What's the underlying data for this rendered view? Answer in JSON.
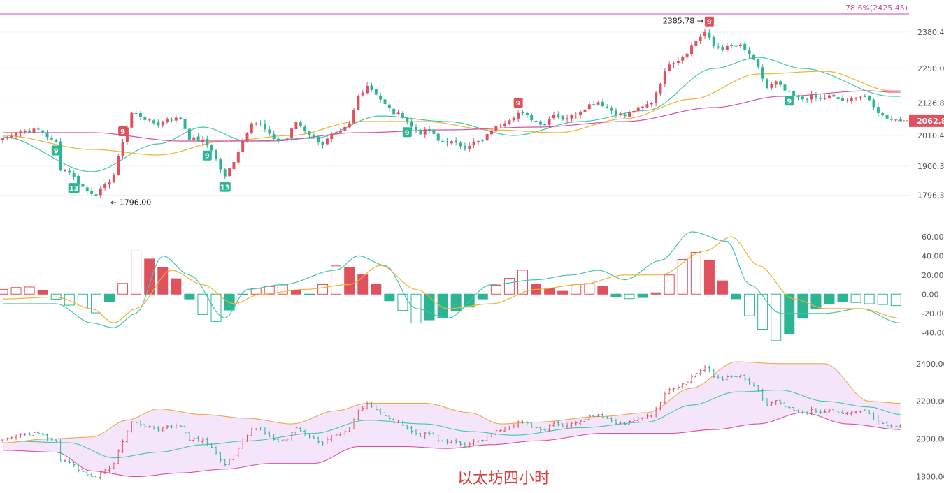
{
  "colors": {
    "up": "#e0515e",
    "down": "#2bb594",
    "fib_line": "#c94ea0",
    "fib_label": "#c94ea0",
    "ma_fast": "#3cc9b0",
    "ma_mid": "#f2b233",
    "ma_slow": "#d94fa6",
    "macd_dif": "#3cc9b0",
    "macd_dea": "#f2b233",
    "boll_upper": "#f2a54a",
    "boll_mid": "#3cc9b0",
    "boll_lower": "#d94fa6",
    "boll_fill": "#f1defa",
    "caption": "#e23b3b",
    "last_price_bg": "#e0515e"
  },
  "chart_data": [
    {
      "panel": "price",
      "type": "candlestick",
      "fib_label": "78.6%(2425.45)",
      "fib_value": 2425.45,
      "last_price": "2062.82",
      "last_price_value": 2062.82,
      "y_ticks": [
        "2380.41",
        "2250.08",
        "2126.80",
        "2010.43",
        "1900.35",
        "1796.30"
      ],
      "y_tick_values": [
        2380.41,
        2250.08,
        2126.8,
        2010.43,
        1900.35,
        1796.3
      ],
      "ylim": [
        1745,
        2440
      ],
      "annotations": [
        {
          "text": "2385.78",
          "value": 2385.78,
          "side": "left-arrow-right"
        },
        {
          "text": "1796.00",
          "value": 1796.0,
          "side": "right-arrow-left"
        }
      ],
      "markers": [
        {
          "text": "9",
          "color": "down",
          "below_candle": 12
        },
        {
          "text": "13",
          "color": "down",
          "below_candle": 16
        },
        {
          "text": "9",
          "color": "up",
          "above_candle": 27
        },
        {
          "text": "9",
          "color": "down",
          "below_candle": 46
        },
        {
          "text": "13",
          "color": "down",
          "below_candle": 50
        },
        {
          "text": "9",
          "color": "down",
          "below_candle": 91
        },
        {
          "text": "9",
          "color": "up",
          "above_candle": 116
        },
        {
          "text": "9",
          "color": "up",
          "above_candle": 159
        },
        {
          "text": "9",
          "color": "down",
          "below_candle": 177
        }
      ],
      "candles_anchor_closes": [
        [
          0,
          2000
        ],
        [
          4,
          2025
        ],
        [
          8,
          2030
        ],
        [
          12,
          1985
        ],
        [
          13,
          1890
        ],
        [
          15,
          1880
        ],
        [
          17,
          1840
        ],
        [
          19,
          1810
        ],
        [
          21,
          1800
        ],
        [
          23,
          1830
        ],
        [
          25,
          1870
        ],
        [
          27,
          1990
        ],
        [
          29,
          2090
        ],
        [
          31,
          2080
        ],
        [
          33,
          2060
        ],
        [
          35,
          2050
        ],
        [
          37,
          2070
        ],
        [
          40,
          2070
        ],
        [
          42,
          2000
        ],
        [
          45,
          1990
        ],
        [
          47,
          1960
        ],
        [
          49,
          1890
        ],
        [
          50,
          1860
        ],
        [
          52,
          1920
        ],
        [
          54,
          1990
        ],
        [
          56,
          2060
        ],
        [
          58,
          2050
        ],
        [
          60,
          2010
        ],
        [
          62,
          1990
        ],
        [
          64,
          2000
        ],
        [
          66,
          2060
        ],
        [
          68,
          2030
        ],
        [
          70,
          2000
        ],
        [
          72,
          1980
        ],
        [
          74,
          2010
        ],
        [
          76,
          2020
        ],
        [
          78,
          2050
        ],
        [
          80,
          2150
        ],
        [
          82,
          2190
        ],
        [
          84,
          2160
        ],
        [
          86,
          2120
        ],
        [
          88,
          2090
        ],
        [
          90,
          2080
        ],
        [
          92,
          2040
        ],
        [
          94,
          2020
        ],
        [
          96,
          2030
        ],
        [
          98,
          1990
        ],
        [
          100,
          1990
        ],
        [
          102,
          1980
        ],
        [
          104,
          1970
        ],
        [
          106,
          1985
        ],
        [
          108,
          1990
        ],
        [
          110,
          2030
        ],
        [
          112,
          2050
        ],
        [
          114,
          2070
        ],
        [
          116,
          2090
        ],
        [
          118,
          2080
        ],
        [
          120,
          2060
        ],
        [
          122,
          2050
        ],
        [
          124,
          2090
        ],
        [
          126,
          2070
        ],
        [
          128,
          2080
        ],
        [
          130,
          2100
        ],
        [
          132,
          2120
        ],
        [
          134,
          2130
        ],
        [
          136,
          2110
        ],
        [
          138,
          2090
        ],
        [
          140,
          2080
        ],
        [
          142,
          2100
        ],
        [
          144,
          2110
        ],
        [
          146,
          2130
        ],
        [
          148,
          2200
        ],
        [
          150,
          2270
        ],
        [
          152,
          2280
        ],
        [
          154,
          2310
        ],
        [
          156,
          2350
        ],
        [
          158,
          2380
        ],
        [
          160,
          2330
        ],
        [
          162,
          2320
        ],
        [
          164,
          2330
        ],
        [
          166,
          2330
        ],
        [
          168,
          2300
        ],
        [
          170,
          2250
        ],
        [
          172,
          2180
        ],
        [
          174,
          2200
        ],
        [
          176,
          2170
        ],
        [
          178,
          2150
        ],
        [
          180,
          2140
        ],
        [
          182,
          2150
        ],
        [
          184,
          2140
        ],
        [
          186,
          2150
        ],
        [
          188,
          2140
        ],
        [
          190,
          2130
        ],
        [
          192,
          2150
        ],
        [
          194,
          2150
        ],
        [
          196,
          2110
        ],
        [
          198,
          2080
        ],
        [
          200,
          2070
        ],
        [
          202,
          2062.82
        ]
      ],
      "candle_count": 203,
      "ma_series": [
        {
          "key": "ma_fast",
          "values_anchor": [
            [
              0,
              2005
            ],
            [
              20,
              1880
            ],
            [
              35,
              1980
            ],
            [
              45,
              2040
            ],
            [
              55,
              1990
            ],
            [
              70,
              2000
            ],
            [
              85,
              2080
            ],
            [
              100,
              2060
            ],
            [
              115,
              2010
            ],
            [
              130,
              2060
            ],
            [
              145,
              2100
            ],
            [
              160,
              2250
            ],
            [
              170,
              2290
            ],
            [
              180,
              2250
            ],
            [
              200,
              2150
            ]
          ]
        },
        {
          "key": "ma_mid",
          "values_anchor": [
            [
              0,
              2010
            ],
            [
              20,
              1960
            ],
            [
              35,
              1940
            ],
            [
              50,
              1990
            ],
            [
              65,
              2010
            ],
            [
              80,
              2060
            ],
            [
              95,
              2060
            ],
            [
              110,
              2030
            ],
            [
              125,
              2020
            ],
            [
              140,
              2070
            ],
            [
              155,
              2140
            ],
            [
              170,
              2230
            ],
            [
              185,
              2240
            ],
            [
              200,
              2170
            ]
          ]
        },
        {
          "key": "ma_slow",
          "values_anchor": [
            [
              0,
              2020
            ],
            [
              20,
              2020
            ],
            [
              40,
              1990
            ],
            [
              60,
              1990
            ],
            [
              80,
              2020
            ],
            [
              100,
              2030
            ],
            [
              120,
              2040
            ],
            [
              140,
              2060
            ],
            [
              160,
              2110
            ],
            [
              175,
              2150
            ],
            [
              195,
              2170
            ],
            [
              200,
              2165
            ]
          ]
        }
      ]
    },
    {
      "panel": "macd",
      "type": "bar",
      "y_ticks": [
        "60.00",
        "40.00",
        "20.00",
        "0.00",
        "-20.00",
        "-40.00"
      ],
      "y_tick_values": [
        60,
        40,
        20,
        0,
        -20,
        -40
      ],
      "ylim": [
        -50,
        70
      ],
      "histogram_anchor": [
        [
          0,
          5
        ],
        [
          5,
          8
        ],
        [
          10,
          3
        ],
        [
          13,
          -8
        ],
        [
          17,
          -15
        ],
        [
          22,
          -20
        ],
        [
          26,
          5
        ],
        [
          30,
          45
        ],
        [
          34,
          35
        ],
        [
          38,
          20
        ],
        [
          42,
          -5
        ],
        [
          47,
          -30
        ],
        [
          52,
          -15
        ],
        [
          55,
          5
        ],
        [
          60,
          8
        ],
        [
          64,
          10
        ],
        [
          68,
          -3
        ],
        [
          72,
          10
        ],
        [
          76,
          33
        ],
        [
          80,
          22
        ],
        [
          84,
          10
        ],
        [
          88,
          -10
        ],
        [
          93,
          -30
        ],
        [
          98,
          -25
        ],
        [
          104,
          -15
        ],
        [
          108,
          -5
        ],
        [
          112,
          12
        ],
        [
          117,
          25
        ],
        [
          121,
          8
        ],
        [
          126,
          3
        ],
        [
          130,
          12
        ],
        [
          134,
          10
        ],
        [
          138,
          -3
        ],
        [
          142,
          -5
        ],
        [
          146,
          -2
        ],
        [
          150,
          20
        ],
        [
          155,
          45
        ],
        [
          159,
          35
        ],
        [
          163,
          10
        ],
        [
          166,
          -10
        ],
        [
          170,
          -35
        ],
        [
          175,
          -50
        ],
        [
          180,
          -25
        ],
        [
          185,
          -10
        ],
        [
          190,
          -8
        ],
        [
          195,
          -10
        ],
        [
          202,
          -12
        ]
      ],
      "dif_anchor": [
        [
          0,
          -10
        ],
        [
          12,
          -10
        ],
        [
          20,
          -30
        ],
        [
          25,
          -35
        ],
        [
          30,
          -20
        ],
        [
          36,
          40
        ],
        [
          42,
          20
        ],
        [
          50,
          -25
        ],
        [
          55,
          5
        ],
        [
          63,
          10
        ],
        [
          75,
          25
        ],
        [
          80,
          40
        ],
        [
          86,
          30
        ],
        [
          93,
          -15
        ],
        [
          100,
          -25
        ],
        [
          110,
          10
        ],
        [
          120,
          15
        ],
        [
          128,
          20
        ],
        [
          134,
          25
        ],
        [
          140,
          15
        ],
        [
          148,
          35
        ],
        [
          155,
          65
        ],
        [
          163,
          55
        ],
        [
          168,
          10
        ],
        [
          175,
          -20
        ],
        [
          185,
          -20
        ],
        [
          193,
          -15
        ],
        [
          202,
          -30
        ]
      ],
      "dea_anchor": [
        [
          0,
          -5
        ],
        [
          12,
          -3
        ],
        [
          20,
          -15
        ],
        [
          25,
          -30
        ],
        [
          30,
          -15
        ],
        [
          38,
          25
        ],
        [
          45,
          10
        ],
        [
          52,
          -10
        ],
        [
          58,
          0
        ],
        [
          68,
          5
        ],
        [
          78,
          10
        ],
        [
          85,
          30
        ],
        [
          93,
          5
        ],
        [
          100,
          -15
        ],
        [
          110,
          -10
        ],
        [
          120,
          5
        ],
        [
          130,
          10
        ],
        [
          140,
          20
        ],
        [
          148,
          20
        ],
        [
          158,
          45
        ],
        [
          164,
          60
        ],
        [
          170,
          30
        ],
        [
          178,
          -5
        ],
        [
          185,
          -15
        ],
        [
          193,
          -15
        ],
        [
          202,
          -25
        ]
      ]
    },
    {
      "panel": "boll",
      "type": "candlestick",
      "y_ticks": [
        "2400.00",
        "2200.00",
        "2000.00",
        "1800.00"
      ],
      "y_tick_values": [
        2400,
        2200,
        2000,
        1800
      ],
      "ylim": [
        1780,
        2440
      ],
      "upper_anchor": [
        [
          0,
          1980
        ],
        [
          10,
          2000
        ],
        [
          20,
          2010
        ],
        [
          28,
          2100
        ],
        [
          35,
          2160
        ],
        [
          45,
          2130
        ],
        [
          55,
          2110
        ],
        [
          65,
          2080
        ],
        [
          75,
          2150
        ],
        [
          82,
          2190
        ],
        [
          95,
          2190
        ],
        [
          105,
          2140
        ],
        [
          112,
          2080
        ],
        [
          120,
          2090
        ],
        [
          135,
          2120
        ],
        [
          145,
          2140
        ],
        [
          155,
          2270
        ],
        [
          165,
          2410
        ],
        [
          175,
          2400
        ],
        [
          185,
          2400
        ],
        [
          195,
          2200
        ],
        [
          202,
          2190
        ]
      ],
      "mid_anchor": [
        [
          0,
          1990
        ],
        [
          15,
          1980
        ],
        [
          25,
          1900
        ],
        [
          35,
          1930
        ],
        [
          45,
          1970
        ],
        [
          55,
          1990
        ],
        [
          70,
          2030
        ],
        [
          82,
          2100
        ],
        [
          95,
          2080
        ],
        [
          105,
          2040
        ],
        [
          115,
          2020
        ],
        [
          130,
          2060
        ],
        [
          145,
          2090
        ],
        [
          155,
          2180
        ],
        [
          165,
          2250
        ],
        [
          175,
          2260
        ],
        [
          185,
          2200
        ],
        [
          195,
          2170
        ],
        [
          202,
          2130
        ]
      ],
      "lower_anchor": [
        [
          0,
          1940
        ],
        [
          12,
          1930
        ],
        [
          20,
          1830
        ],
        [
          30,
          1800
        ],
        [
          40,
          1820
        ],
        [
          50,
          1840
        ],
        [
          60,
          1870
        ],
        [
          70,
          1870
        ],
        [
          80,
          1960
        ],
        [
          90,
          1960
        ],
        [
          100,
          1950
        ],
        [
          110,
          1970
        ],
        [
          120,
          1990
        ],
        [
          135,
          2030
        ],
        [
          150,
          2030
        ],
        [
          160,
          2050
        ],
        [
          170,
          2080
        ],
        [
          180,
          2140
        ],
        [
          190,
          2080
        ],
        [
          202,
          2050
        ]
      ]
    }
  ],
  "caption": "以太坊四小时",
  "x_ticks_visible": false
}
